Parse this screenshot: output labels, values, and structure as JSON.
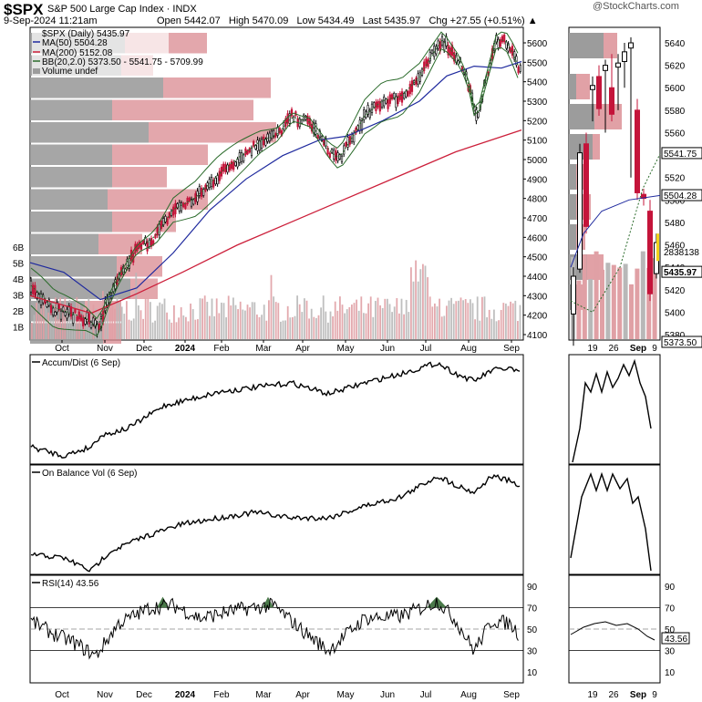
{
  "header": {
    "symbol": "$SPX",
    "name": "S&P 500 Large Cap Index · INDX",
    "date": "9-Sep-2024 11:21am",
    "quote": "Open 5442.07   High 5470.09   Low 5434.49   Last 5435.97   Chg +27.55 (+0.51%) ▲",
    "brand": "@StockCharts.com"
  },
  "legend": {
    "price": "$SPX (Daily) 5435.97",
    "ma50": "MA(50) 5504.28",
    "ma200": "MA(200) 5152.08",
    "bb": "BB(20,2.0) 5373.50 - 5541.75 - 5709.99",
    "volume": "Volume undef"
  },
  "colors": {
    "ma50": "#1f2a9e",
    "ma200": "#cc1f3a",
    "bb": "#2b6b2b",
    "vbp_up": "#9c9c9c",
    "vbp_down": "#d98a90",
    "vol_down": "#e0a0a5",
    "vol_up": "#b8b8b8",
    "rsi_fill": "#4a7a4a",
    "last_tag": "#000000"
  },
  "x_labels_main": [
    "Oct",
    "Nov",
    "Dec",
    "2024",
    "Feb",
    "Mar",
    "Apr",
    "May",
    "Jun",
    "Jul",
    "Aug",
    "Sep"
  ],
  "x_labels_zoom": [
    "19",
    "26",
    "Sep",
    "9"
  ],
  "y_labels_price": [
    "5600",
    "5500",
    "5400",
    "5300",
    "5200",
    "5100",
    "5000",
    "4900",
    "4800",
    "4700",
    "4600",
    "4500",
    "4400",
    "4300",
    "4200",
    "4100"
  ],
  "y_labels_volume": [
    "6B",
    "5B",
    "4B",
    "3B",
    "2B",
    "1B"
  ],
  "y_labels_zoom": [
    "5640",
    "5620",
    "5600",
    "5580",
    "5560",
    "5540",
    "5520",
    "5500",
    "5480",
    "5460",
    "5440",
    "5420",
    "5400",
    "5380"
  ],
  "price_tags_zoom": [
    "5541.75",
    "5504.28",
    "5435.97",
    "5373.50"
  ],
  "price_tag_extra": "2838138",
  "panels": {
    "ad": "Accum/Dist (6 Sep)",
    "obv": "On Balance Vol (6 Sep)",
    "rsi": "RSI(14) 43.56"
  },
  "rsi_labels": [
    "90",
    "70",
    "50",
    "30",
    "10"
  ],
  "rsi_last": "43.56",
  "chart_data": {
    "type": "line",
    "title": "$SPX S&P 500 Large Cap Index",
    "x": [
      "Oct",
      "Nov",
      "Dec",
      "2024",
      "Feb",
      "Mar",
      "Apr",
      "May",
      "Jun",
      "Jul",
      "Aug",
      "Sep"
    ],
    "ylim": [
      4100,
      5700
    ],
    "series": [
      {
        "name": "$SPX (Daily)",
        "values": [
          4300,
          4150,
          4560,
          4760,
          4900,
          5090,
          5140,
          5060,
          5320,
          5600,
          5380,
          5440
        ]
      },
      {
        "name": "MA(50)",
        "values": [
          4420,
          4300,
          4380,
          4580,
          4770,
          4960,
          5060,
          5090,
          5200,
          5420,
          5420,
          5504
        ]
      },
      {
        "name": "MA(200)",
        "values": [
          4200,
          4230,
          4280,
          4360,
          4460,
          4580,
          4700,
          4830,
          4940,
          5050,
          5100,
          5152
        ]
      }
    ],
    "rsi_values": [
      48,
      32,
      68,
      62,
      66,
      70,
      58,
      45,
      58,
      72,
      35,
      44
    ],
    "ylim_rsi": [
      0,
      100
    ]
  }
}
